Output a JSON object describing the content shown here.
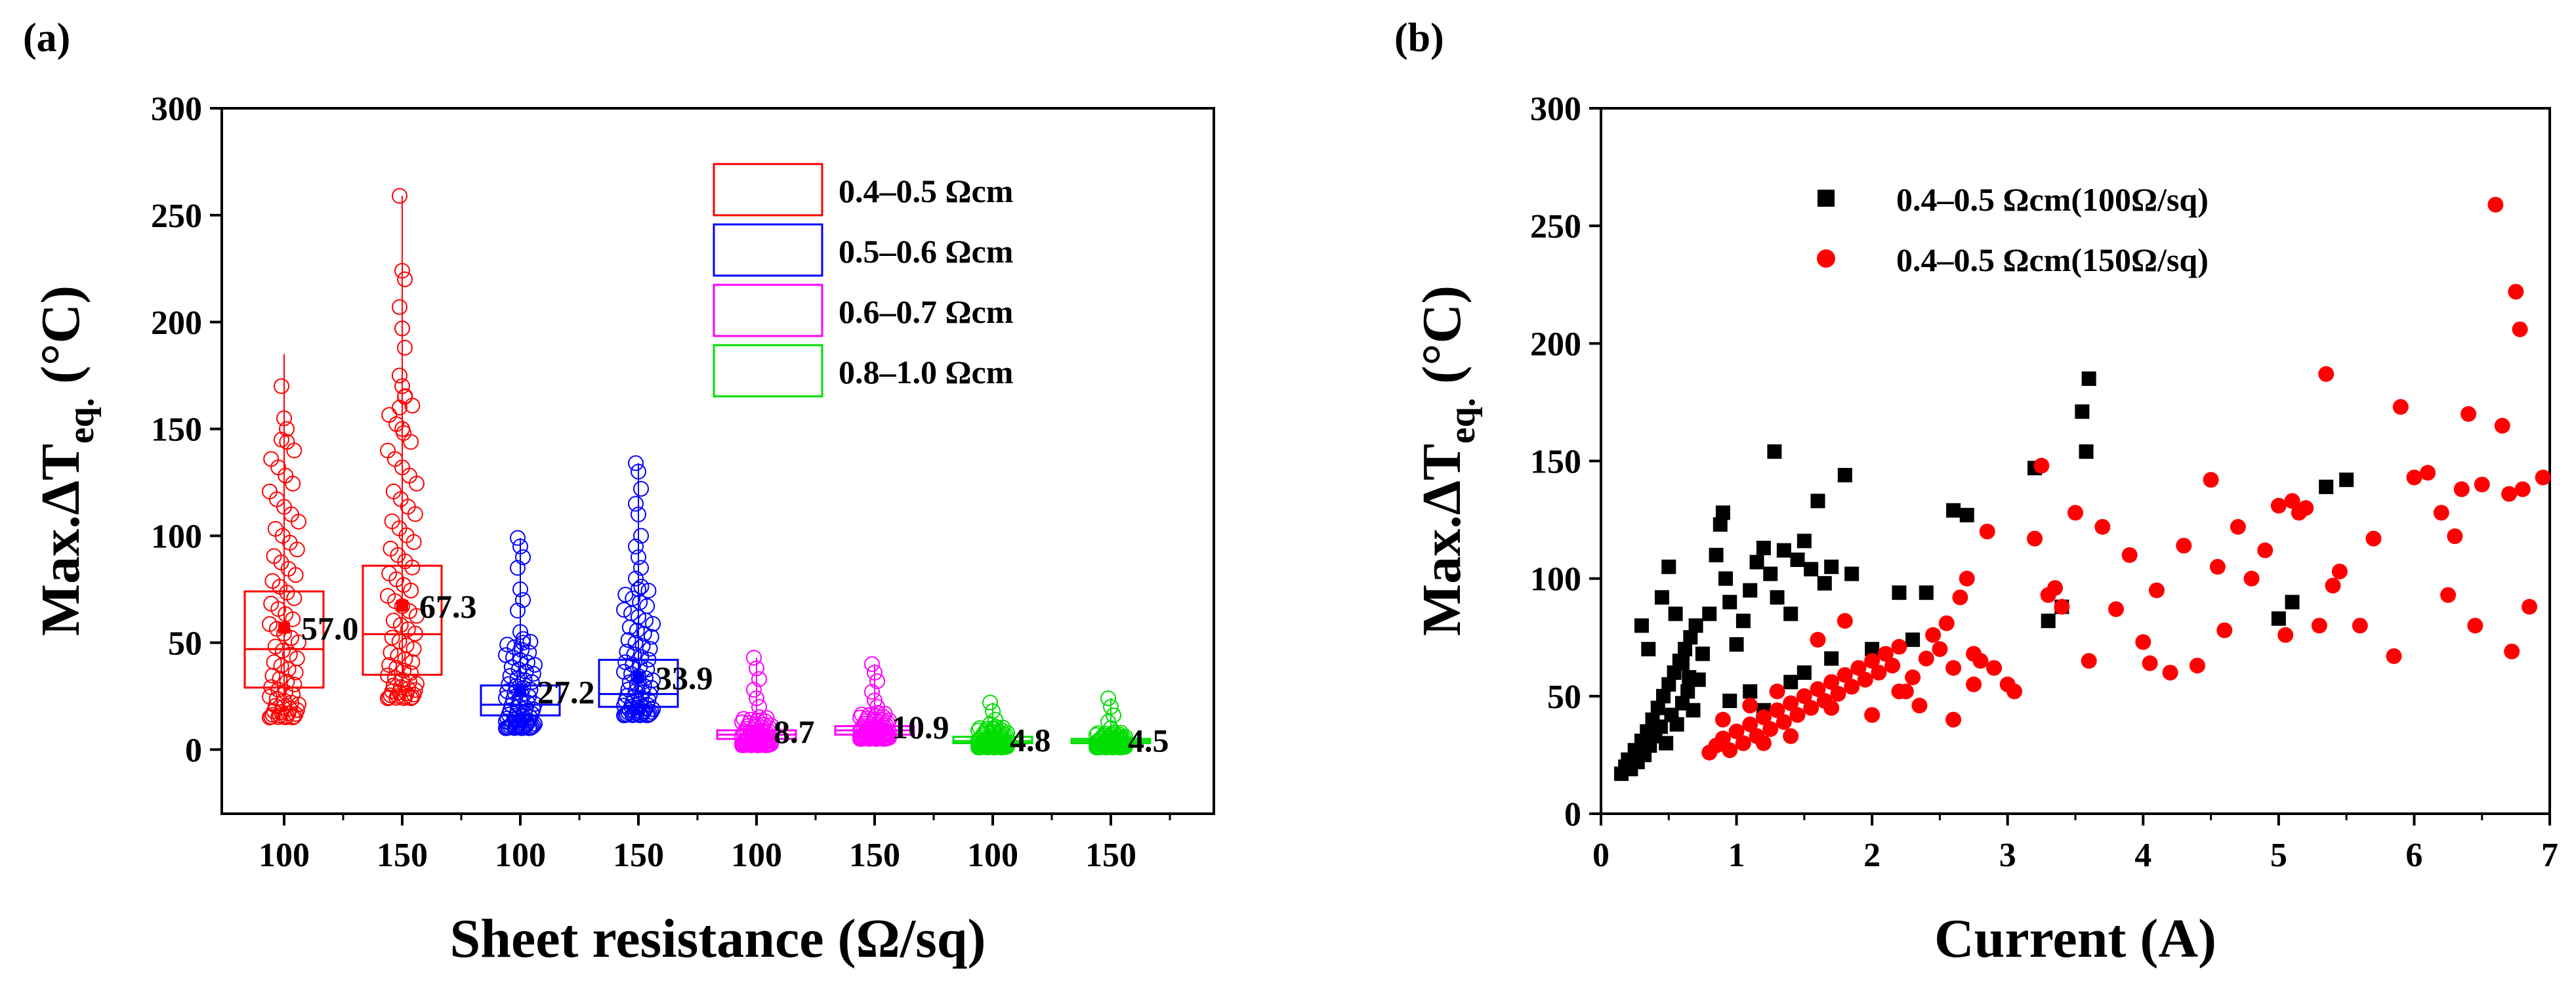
{
  "chart_data": [
    {
      "type": "box",
      "panel": "(a)",
      "xlabel": "Sheet resistance (Ω/sq)",
      "ylabel": "Max.ΔT",
      "ylabel_sub": "eq.",
      "ylabel_unit": " (°C)",
      "ylim": [
        -30,
        300
      ],
      "yticks": [
        0,
        50,
        100,
        150,
        200,
        250,
        300
      ],
      "categories": [
        "100",
        "150",
        "100",
        "150",
        "100",
        "150",
        "100",
        "150"
      ],
      "legend": [
        {
          "label": "0.4–0.5 Ωcm",
          "color": "#ff0000"
        },
        {
          "label": "0.5–0.6 Ωcm",
          "color": "#0000ff"
        },
        {
          "label": "0.6–0.7 Ωcm",
          "color": "#ff00ff"
        },
        {
          "label": "0.8–1.0 Ωcm",
          "color": "#00dd00"
        }
      ],
      "boxes": [
        {
          "group": 0,
          "q1": 29,
          "median": 47,
          "q3": 74,
          "mean": 57.0,
          "mean_label": "57.0",
          "min": 15,
          "max": 185,
          "outliers": [
            170,
            155,
            150,
            145
          ]
        },
        {
          "group": 0,
          "q1": 35,
          "median": 54,
          "q3": 86,
          "mean": 67.3,
          "mean_label": "67.3",
          "min": 24,
          "max": 259,
          "outliers": [
            259,
            224,
            220,
            207,
            197,
            188,
            175,
            170,
            165,
            160,
            150
          ]
        },
        {
          "group": 1,
          "q1": 16,
          "median": 21,
          "q3": 30,
          "mean": 27.2,
          "mean_label": "27.2",
          "min": 10,
          "max": 99,
          "outliers": [
            99,
            95,
            90,
            85,
            75,
            70,
            65,
            55,
            50
          ]
        },
        {
          "group": 1,
          "q1": 20,
          "median": 26,
          "q3": 42,
          "mean": 33.9,
          "mean_label": "33.9",
          "min": 16,
          "max": 134,
          "outliers": [
            134,
            130,
            122,
            115,
            110,
            100,
            95,
            90,
            85,
            80,
            75
          ]
        },
        {
          "group": 2,
          "q1": 5,
          "median": 7,
          "q3": 9,
          "mean": 8.7,
          "mean_label": "8.7",
          "min": 2,
          "max": 43,
          "outliers": [
            43,
            38,
            33,
            28,
            24,
            20
          ]
        },
        {
          "group": 2,
          "q1": 7,
          "median": 9,
          "q3": 11,
          "mean": 10.9,
          "mean_label": "10.9",
          "min": 5,
          "max": 40,
          "outliers": [
            40,
            36,
            32,
            27,
            23,
            20
          ]
        },
        {
          "group": 3,
          "q1": 3,
          "median": 4,
          "q3": 6,
          "mean": 4.8,
          "mean_label": "4.8",
          "min": 1,
          "max": 22,
          "outliers": [
            22,
            18,
            14,
            12,
            10
          ]
        },
        {
          "group": 3,
          "q1": 3,
          "median": 4,
          "q3": 5,
          "mean": 4.5,
          "mean_label": "4.5",
          "min": 1,
          "max": 24,
          "outliers": [
            24,
            20,
            16,
            13,
            10
          ]
        }
      ]
    },
    {
      "type": "scatter",
      "panel": "(b)",
      "xlabel": "Current (A)",
      "ylabel": "Max.ΔT",
      "ylabel_sub": "eq.",
      "ylabel_unit": " (°C)",
      "xlim": [
        0,
        7
      ],
      "ylim": [
        0,
        300
      ],
      "xticks": [
        0,
        1,
        2,
        3,
        4,
        5,
        6,
        7
      ],
      "yticks": [
        0,
        50,
        100,
        150,
        200,
        250,
        300
      ],
      "series": [
        {
          "name": "0.4–0.5 Ωcm(100Ω/sq)",
          "marker": "square",
          "color": "#000000",
          "points": [
            [
              0.15,
              17
            ],
            [
              0.18,
              20
            ],
            [
              0.2,
              23
            ],
            [
              0.22,
              19
            ],
            [
              0.25,
              27
            ],
            [
              0.27,
              22
            ],
            [
              0.3,
              31
            ],
            [
              0.32,
              25
            ],
            [
              0.34,
              35
            ],
            [
              0.36,
              29
            ],
            [
              0.38,
              40
            ],
            [
              0.4,
              33
            ],
            [
              0.42,
              45
            ],
            [
              0.44,
              37
            ],
            [
              0.46,
              50
            ],
            [
              0.48,
              30
            ],
            [
              0.5,
              55
            ],
            [
              0.52,
              42
            ],
            [
              0.54,
              60
            ],
            [
              0.56,
              38
            ],
            [
              0.58,
              65
            ],
            [
              0.6,
              47
            ],
            [
              0.62,
              70
            ],
            [
              0.64,
              52
            ],
            [
              0.66,
              75
            ],
            [
              0.68,
              44
            ],
            [
              0.7,
              80
            ],
            [
              0.72,
              57
            ],
            [
              0.3,
              80
            ],
            [
              0.35,
              70
            ],
            [
              0.45,
              92
            ],
            [
              0.5,
              105
            ],
            [
              0.55,
              85
            ],
            [
              0.6,
              64
            ],
            [
              0.65,
              58
            ],
            [
              0.75,
              68
            ],
            [
              0.8,
              85
            ],
            [
              0.85,
              110
            ],
            [
              0.88,
              123
            ],
            [
              0.9,
              128
            ],
            [
              0.92,
              100
            ],
            [
              0.95,
              90
            ],
            [
              1.0,
              72
            ],
            [
              1.05,
              82
            ],
            [
              1.1,
              95
            ],
            [
              1.15,
              107
            ],
            [
              1.2,
              113
            ],
            [
              1.25,
              102
            ],
            [
              1.28,
              154
            ],
            [
              1.3,
              92
            ],
            [
              1.35,
              112
            ],
            [
              1.4,
              85
            ],
            [
              1.45,
              108
            ],
            [
              1.5,
              116
            ],
            [
              1.55,
              104
            ],
            [
              1.6,
              133
            ],
            [
              1.65,
              98
            ],
            [
              1.7,
              105
            ],
            [
              1.8,
              144
            ],
            [
              1.85,
              102
            ],
            [
              2.2,
              94
            ],
            [
              2.3,
              74
            ],
            [
              2.4,
              94
            ],
            [
              2.6,
              129
            ],
            [
              2.7,
              127
            ],
            [
              3.2,
              147
            ],
            [
              3.3,
              82
            ],
            [
              3.4,
              88
            ],
            [
              3.55,
              171
            ],
            [
              3.58,
              154
            ],
            [
              3.6,
              185
            ],
            [
              5.0,
              83
            ],
            [
              5.1,
              90
            ],
            [
              5.35,
              139
            ],
            [
              5.5,
              142
            ],
            [
              0.95,
              48
            ],
            [
              1.1,
              52
            ],
            [
              1.2,
              44
            ],
            [
              1.4,
              56
            ],
            [
              1.5,
              60
            ],
            [
              1.7,
              66
            ],
            [
              2.0,
              70
            ]
          ]
        },
        {
          "name": "0.4–0.5 Ωcm(150Ω/sq)",
          "marker": "circle",
          "color": "#ff0000",
          "points": [
            [
              0.8,
              26
            ],
            [
              0.85,
              29
            ],
            [
              0.9,
              32
            ],
            [
              0.95,
              27
            ],
            [
              1.0,
              35
            ],
            [
              1.05,
              30
            ],
            [
              1.1,
              38
            ],
            [
              1.15,
              33
            ],
            [
              1.2,
              41
            ],
            [
              1.25,
              36
            ],
            [
              1.3,
              44
            ],
            [
              1.35,
              39
            ],
            [
              1.4,
              47
            ],
            [
              1.45,
              42
            ],
            [
              1.5,
              50
            ],
            [
              1.55,
              45
            ],
            [
              1.6,
              53
            ],
            [
              1.65,
              48
            ],
            [
              1.7,
              56
            ],
            [
              1.75,
              51
            ],
            [
              1.8,
              59
            ],
            [
              1.85,
              54
            ],
            [
              1.9,
              62
            ],
            [
              1.95,
              57
            ],
            [
              2.0,
              65
            ],
            [
              2.05,
              60
            ],
            [
              2.1,
              68
            ],
            [
              2.15,
              63
            ],
            [
              2.2,
              71
            ],
            [
              2.25,
              52
            ],
            [
              2.3,
              58
            ],
            [
              2.35,
              46
            ],
            [
              2.4,
              66
            ],
            [
              2.45,
              76
            ],
            [
              2.5,
              70
            ],
            [
              2.55,
              81
            ],
            [
              2.6,
              62
            ],
            [
              2.65,
              92
            ],
            [
              2.7,
              100
            ],
            [
              2.75,
              55
            ],
            [
              2.8,
              65
            ],
            [
              2.85,
              120
            ],
            [
              2.9,
              62
            ],
            [
              3.0,
              55
            ],
            [
              3.05,
              52
            ],
            [
              3.2,
              117
            ],
            [
              3.25,
              148
            ],
            [
              3.3,
              93
            ],
            [
              3.35,
              96
            ],
            [
              3.4,
              88
            ],
            [
              3.5,
              128
            ],
            [
              3.6,
              65
            ],
            [
              3.7,
              122
            ],
            [
              3.8,
              87
            ],
            [
              3.9,
              110
            ],
            [
              4.0,
              73
            ],
            [
              4.05,
              64
            ],
            [
              4.1,
              95
            ],
            [
              4.2,
              60
            ],
            [
              4.3,
              114
            ],
            [
              4.4,
              63
            ],
            [
              4.5,
              142
            ],
            [
              4.55,
              105
            ],
            [
              4.6,
              78
            ],
            [
              4.7,
              122
            ],
            [
              4.8,
              100
            ],
            [
              4.9,
              112
            ],
            [
              5.0,
              131
            ],
            [
              5.05,
              76
            ],
            [
              5.1,
              133
            ],
            [
              5.15,
              128
            ],
            [
              5.2,
              130
            ],
            [
              5.3,
              80
            ],
            [
              5.35,
              187
            ],
            [
              5.4,
              97
            ],
            [
              5.45,
              103
            ],
            [
              5.6,
              80
            ],
            [
              5.7,
              117
            ],
            [
              5.85,
              67
            ],
            [
              5.9,
              173
            ],
            [
              6.0,
              143
            ],
            [
              6.1,
              145
            ],
            [
              6.2,
              128
            ],
            [
              6.25,
              93
            ],
            [
              6.3,
              118
            ],
            [
              6.35,
              138
            ],
            [
              6.4,
              170
            ],
            [
              6.45,
              80
            ],
            [
              6.5,
              140
            ],
            [
              6.6,
              259
            ],
            [
              6.65,
              165
            ],
            [
              6.7,
              136
            ],
            [
              6.72,
              69
            ],
            [
              6.75,
              222
            ],
            [
              6.78,
              206
            ],
            [
              6.8,
              138
            ],
            [
              6.85,
              88
            ],
            [
              6.95,
              143
            ],
            [
              0.9,
              40
            ],
            [
              1.1,
              46
            ],
            [
              1.3,
              52
            ],
            [
              1.6,
              74
            ],
            [
              1.8,
              82
            ],
            [
              2.0,
              42
            ],
            [
              2.2,
              52
            ],
            [
              2.6,
              40
            ],
            [
              2.75,
              68
            ],
            [
              1.2,
              30
            ],
            [
              1.4,
              33
            ],
            [
              1.7,
              45
            ]
          ]
        }
      ]
    }
  ]
}
